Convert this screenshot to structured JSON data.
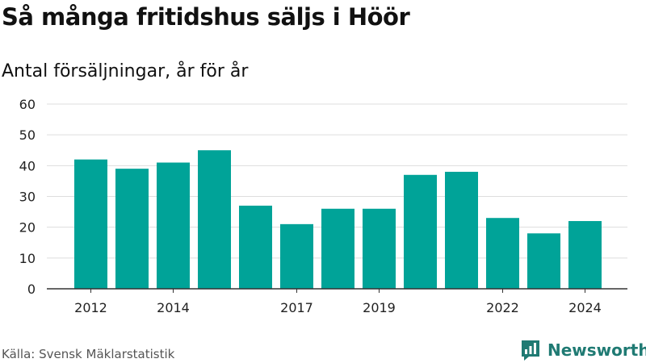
{
  "title": "Så många fritidshus säljs i Höör",
  "subtitle": "Antal försäljningar, år för år",
  "source": "Källa: Svensk Mäklarstatistik",
  "brand": "Newsworthy",
  "colors": {
    "bar": "#00a398",
    "brand": "#1f7a73",
    "grid": "#dddddd",
    "axis": "#333333"
  },
  "icons": {
    "brand_logo": "newsworthy-logo-icon"
  },
  "chart_data": {
    "type": "bar",
    "categories": [
      "2012",
      "2013",
      "2014",
      "2015",
      "2016",
      "2017",
      "2018",
      "2019",
      "2020",
      "2021",
      "2022",
      "2023",
      "2024"
    ],
    "values": [
      42,
      39,
      41,
      45,
      27,
      21,
      26,
      26,
      37,
      38,
      23,
      18,
      22
    ],
    "xtick_labels": [
      "2012",
      "2014",
      "2017",
      "2019",
      "2022",
      "2024"
    ],
    "yticks": [
      0,
      10,
      20,
      30,
      40,
      50,
      60
    ],
    "ylim": [
      0,
      60
    ],
    "xlabel": "",
    "ylabel": "",
    "grid": true
  }
}
